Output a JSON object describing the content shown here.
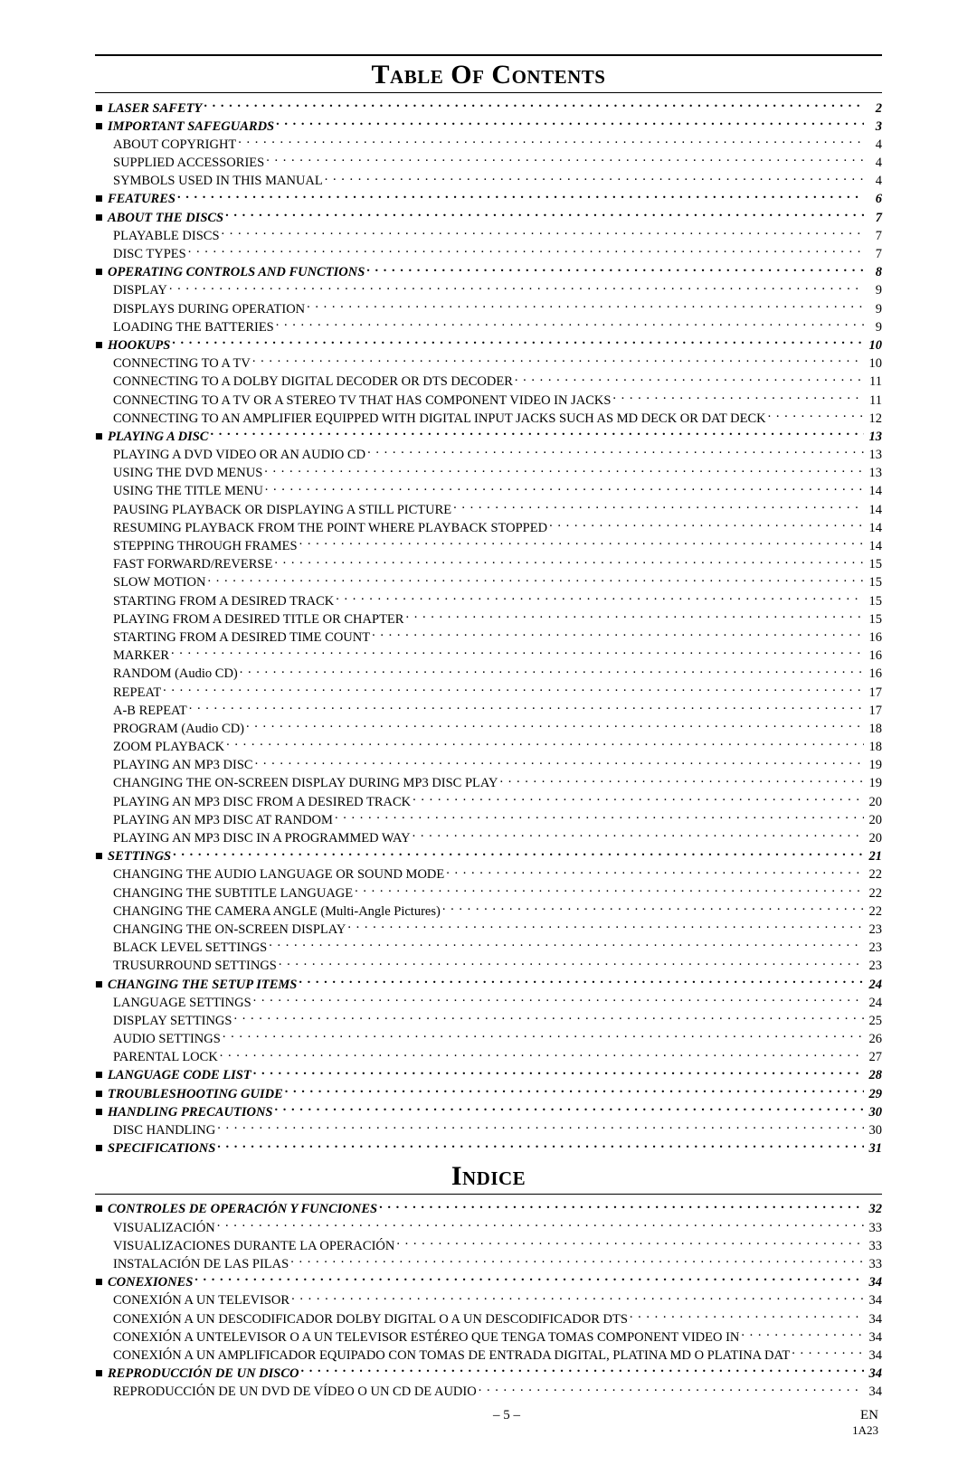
{
  "titles": {
    "toc": "Table Of Contents",
    "indice": "Indice"
  },
  "toc": [
    {
      "type": "section",
      "label": "LASER SAFETY",
      "page": "2"
    },
    {
      "type": "section",
      "label": "IMPORTANT SAFEGUARDS",
      "page": "3"
    },
    {
      "type": "sub",
      "label": "ABOUT COPYRIGHT",
      "page": "4"
    },
    {
      "type": "sub",
      "label": "SUPPLIED ACCESSORIES",
      "page": "4"
    },
    {
      "type": "sub",
      "label": "SYMBOLS USED IN THIS MANUAL",
      "page": "4"
    },
    {
      "type": "section",
      "label": "FEATURES",
      "page": "6"
    },
    {
      "type": "section",
      "label": "ABOUT THE DISCS",
      "page": "7"
    },
    {
      "type": "sub",
      "label": "PLAYABLE DISCS",
      "page": "7"
    },
    {
      "type": "sub",
      "label": "DISC TYPES",
      "page": "7"
    },
    {
      "type": "section",
      "label": "OPERATING CONTROLS AND FUNCTIONS",
      "page": "8"
    },
    {
      "type": "sub",
      "label": "DISPLAY",
      "page": "9"
    },
    {
      "type": "sub",
      "label": "DISPLAYS DURING OPERATION",
      "page": "9"
    },
    {
      "type": "sub",
      "label": "LOADING THE BATTERIES",
      "page": "9"
    },
    {
      "type": "section",
      "label": "HOOKUPS",
      "page": "10"
    },
    {
      "type": "sub",
      "label": "CONNECTING TO A TV",
      "page": "10"
    },
    {
      "type": "sub",
      "label": "CONNECTING TO A DOLBY DIGITAL DECODER OR DTS DECODER",
      "page": "11"
    },
    {
      "type": "sub",
      "label": "CONNECTING TO A TV OR A STEREO TV THAT HAS COMPONENT VIDEO IN JACKS",
      "page": "11"
    },
    {
      "type": "sub",
      "label": "CONNECTING TO AN AMPLIFIER EQUIPPED WITH DIGITAL INPUT JACKS SUCH AS MD DECK OR DAT DECK",
      "page": "12"
    },
    {
      "type": "section",
      "label": "PLAYING A DISC",
      "page": "13"
    },
    {
      "type": "sub",
      "label": "PLAYING A DVD VIDEO OR AN AUDIO CD",
      "page": "13"
    },
    {
      "type": "sub",
      "label": "USING THE DVD MENUS",
      "page": "13"
    },
    {
      "type": "sub",
      "label": "USING THE TITLE MENU",
      "page": "14"
    },
    {
      "type": "sub",
      "label": "PAUSING PLAYBACK OR DISPLAYING A STILL PICTURE",
      "page": "14"
    },
    {
      "type": "sub",
      "label": "RESUMING PLAYBACK FROM THE POINT WHERE PLAYBACK STOPPED",
      "page": "14"
    },
    {
      "type": "sub",
      "label": "STEPPING THROUGH FRAMES",
      "page": "14"
    },
    {
      "type": "sub",
      "label": "FAST FORWARD/REVERSE",
      "page": "15"
    },
    {
      "type": "sub",
      "label": "SLOW MOTION",
      "page": "15"
    },
    {
      "type": "sub",
      "label": "STARTING FROM A DESIRED TRACK",
      "page": "15"
    },
    {
      "type": "sub",
      "label": "PLAYING FROM A DESIRED TITLE OR CHAPTER",
      "page": "15"
    },
    {
      "type": "sub",
      "label": "STARTING FROM A DESIRED TIME COUNT",
      "page": "16"
    },
    {
      "type": "sub",
      "label": "MARKER",
      "page": "16"
    },
    {
      "type": "sub",
      "label": "RANDOM (Audio CD)",
      "page": "16"
    },
    {
      "type": "sub",
      "label": "REPEAT",
      "page": "17"
    },
    {
      "type": "sub",
      "label": "A-B REPEAT",
      "page": "17"
    },
    {
      "type": "sub",
      "label": "PROGRAM (Audio CD)",
      "page": "18"
    },
    {
      "type": "sub",
      "label": "ZOOM PLAYBACK",
      "page": "18"
    },
    {
      "type": "sub",
      "label": "PLAYING AN MP3 DISC",
      "page": "19"
    },
    {
      "type": "sub",
      "label": "CHANGING THE ON-SCREEN DISPLAY DURING MP3 DISC PLAY",
      "page": "19"
    },
    {
      "type": "sub",
      "label": "PLAYING AN MP3 DISC FROM A DESIRED TRACK",
      "page": "20"
    },
    {
      "type": "sub",
      "label": "PLAYING AN MP3 DISC AT RANDOM",
      "page": "20"
    },
    {
      "type": "sub",
      "label": "PLAYING AN MP3 DISC IN A PROGRAMMED WAY",
      "page": "20"
    },
    {
      "type": "section",
      "label": "SETTINGS",
      "page": "21"
    },
    {
      "type": "sub",
      "label": "CHANGING THE AUDIO LANGUAGE OR SOUND MODE",
      "page": "22"
    },
    {
      "type": "sub",
      "label": "CHANGING THE SUBTITLE LANGUAGE",
      "page": "22"
    },
    {
      "type": "sub",
      "label": "CHANGING THE CAMERA ANGLE (Multi-Angle Pictures)",
      "page": "22"
    },
    {
      "type": "sub",
      "label": "CHANGING THE ON-SCREEN DISPLAY",
      "page": "23"
    },
    {
      "type": "sub",
      "label": "BLACK LEVEL SETTINGS",
      "page": "23"
    },
    {
      "type": "sub",
      "label": "TRUSURROUND SETTINGS",
      "page": "23"
    },
    {
      "type": "section",
      "label": "CHANGING THE SETUP ITEMS",
      "page": "24"
    },
    {
      "type": "sub",
      "label": "LANGUAGE SETTINGS",
      "page": "24"
    },
    {
      "type": "sub",
      "label": "DISPLAY SETTINGS",
      "page": "25"
    },
    {
      "type": "sub",
      "label": "AUDIO SETTINGS",
      "page": "26"
    },
    {
      "type": "sub",
      "label": "PARENTAL LOCK",
      "page": "27"
    },
    {
      "type": "section",
      "label": "LANGUAGE CODE LIST",
      "page": "28"
    },
    {
      "type": "section",
      "label": "TROUBLESHOOTING GUIDE",
      "page": "29"
    },
    {
      "type": "section",
      "label": "HANDLING PRECAUTIONS",
      "page": "30"
    },
    {
      "type": "sub",
      "label": "DISC HANDLING",
      "page": "30"
    },
    {
      "type": "section",
      "label": "SPECIFICATIONS",
      "page": "31"
    }
  ],
  "indice": [
    {
      "type": "section",
      "label": "CONTROLES DE OPERACIÓN Y FUNCIONES",
      "page": "32"
    },
    {
      "type": "sub",
      "label": "VISUALIZACIÓN",
      "page": "33"
    },
    {
      "type": "sub",
      "label": "VISUALIZACIONES DURANTE LA OPERACIÓN",
      "page": "33"
    },
    {
      "type": "sub",
      "label": "INSTALACIÓN DE LAS PILAS",
      "page": "33"
    },
    {
      "type": "section",
      "label": "CONEXIONES",
      "page": "34"
    },
    {
      "type": "sub",
      "label": "CONEXIÓN A UN TELEVISOR",
      "page": "34"
    },
    {
      "type": "sub",
      "label": "CONEXIÓN A UN DESCODIFICADOR DOLBY DIGITAL O A UN DESCODIFICADOR DTS",
      "page": "34"
    },
    {
      "type": "sub",
      "label": "CONEXIÓN A UNTELEVISOR O A UN TELEVISOR ESTÉREO QUE TENGA TOMAS COMPONENT VIDEO IN",
      "page": "34"
    },
    {
      "type": "sub",
      "label": "CONEXIÓN A UN AMPLIFICADOR EQUIPADO CON TOMAS DE ENTRADA DIGITAL, PLATINA MD O PLATINA DAT",
      "page": "34"
    },
    {
      "type": "section",
      "label": "REPRODUCCIÓN DE UN DISCO",
      "page": "34"
    },
    {
      "type": "sub",
      "label": "REPRODUCCIÓN DE UN DVD DE VÍDEO O UN CD DE AUDIO",
      "page": "34"
    }
  ],
  "footer": {
    "pageNum": "– 5 –",
    "lang": "EN",
    "code": "1A23"
  }
}
